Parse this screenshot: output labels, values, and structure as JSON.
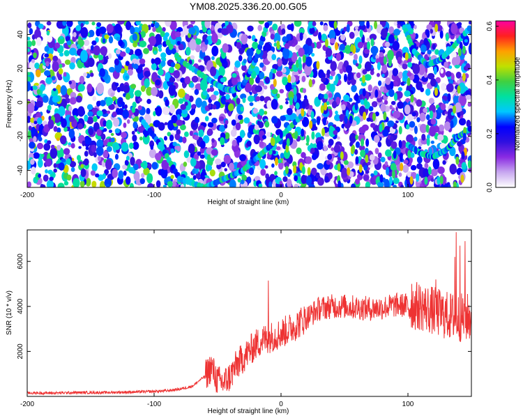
{
  "title": "YM08.2025.336.20.00.G05",
  "chart_data": [
    {
      "type": "heatmap",
      "xlabel": "Height of straight line (km)",
      "ylabel": "Frequency (Hz)",
      "xlim": [
        -200,
        150
      ],
      "ylim": [
        -50,
        48
      ],
      "xticks": [
        -200,
        -100,
        0,
        100
      ],
      "yticks": [
        -40,
        -20,
        0,
        20,
        40
      ],
      "colorbar": {
        "label": "Normalized spectral amplitude",
        "range": [
          0.0,
          0.62
        ],
        "ticks": [
          "0.0",
          "0.2",
          "0.4",
          "0.6"
        ],
        "colormap": [
          "#ffffff",
          "#c8a8f0",
          "#8a2be2",
          "#3010e0",
          "#0000ff",
          "#00c8ff",
          "#00e0a0",
          "#40d040",
          "#c0e000",
          "#ffa000",
          "#ff2020",
          "#ff00a0"
        ]
      },
      "ridges": [
        {
          "x": [
            -100,
            -80,
            -60,
            -45,
            -38,
            -30,
            -20,
            -10
          ],
          "y": [
            48,
            25,
            15,
            8,
            7,
            10,
            25,
            48
          ]
        },
        {
          "x": [
            -110,
            -95,
            -80,
            -60,
            -45,
            -30,
            -15,
            0,
            20
          ],
          "y": [
            -10,
            -25,
            -45,
            -50,
            -45,
            -40,
            -30,
            -20,
            -5
          ]
        },
        {
          "x": [
            100,
            110,
            120,
            130,
            140,
            150
          ],
          "y": [
            -25,
            -30,
            -32,
            -28,
            -20,
            -15
          ]
        },
        {
          "x": [
            95,
            105,
            115,
            125,
            135,
            150
          ],
          "y": [
            48,
            30,
            22,
            25,
            32,
            45
          ]
        }
      ]
    },
    {
      "type": "line",
      "xlabel": "Height of straight line (km)",
      "ylabel": "SNR (10 * v/v)",
      "xlim": [
        -200,
        150
      ],
      "ylim": [
        0,
        7400
      ],
      "xticks": [
        -200,
        -100,
        0,
        100
      ],
      "yticks": [
        2000,
        4000,
        6000
      ],
      "color": "#ee3333",
      "series": [
        {
          "x": [
            -200,
            -180,
            -160,
            -140,
            -120,
            -100,
            -90,
            -80,
            -70,
            -60,
            -55,
            -50,
            -45,
            -40,
            -35,
            -30,
            -25,
            -20,
            -15,
            -10,
            -5,
            0,
            10,
            20,
            30,
            40,
            50,
            60,
            70,
            80,
            90,
            100,
            110,
            120,
            130,
            140,
            150
          ],
          "y": [
            150,
            150,
            170,
            170,
            190,
            220,
            250,
            320,
            450,
            900,
            1300,
            700,
            600,
            900,
            1400,
            1700,
            2000,
            2300,
            2500,
            2600,
            2700,
            2800,
            3100,
            3500,
            3900,
            4000,
            4000,
            3950,
            3900,
            3950,
            4050,
            4050,
            4000,
            3800,
            3600,
            3500,
            3500
          ]
        }
      ],
      "spikes": [
        {
          "x": -55,
          "y": 1750
        },
        {
          "x": -10,
          "y": 5150
        },
        {
          "x": 103,
          "y": 5000
        },
        {
          "x": 122,
          "y": 5200
        },
        {
          "x": 137,
          "y": 6200
        },
        {
          "x": 138,
          "y": 7300
        },
        {
          "x": 141,
          "y": 6700
        },
        {
          "x": 145,
          "y": 6900
        }
      ]
    }
  ]
}
